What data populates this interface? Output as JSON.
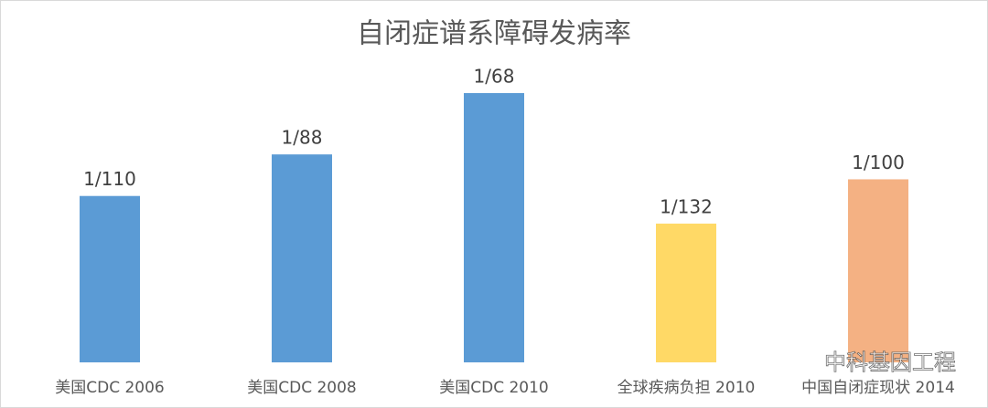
{
  "chart_data": {
    "type": "bar",
    "title": "自闭症谱系障碍发病率",
    "categories": [
      "美国CDC 2006",
      "美国CDC 2008",
      "美国CDC 2010",
      "全球疾病负担 2010",
      "中国自闭症现状 2014"
    ],
    "values": [
      0.00909,
      0.01136,
      0.01471,
      0.00758,
      0.01
    ],
    "value_labels": [
      "1/110",
      "1/88",
      "1/68",
      "1/132",
      "1/100"
    ],
    "colors": [
      "#5b9bd5",
      "#5b9bd5",
      "#5b9bd5",
      "#ffd966",
      "#f4b183"
    ],
    "watermark": "中科基因工程"
  }
}
